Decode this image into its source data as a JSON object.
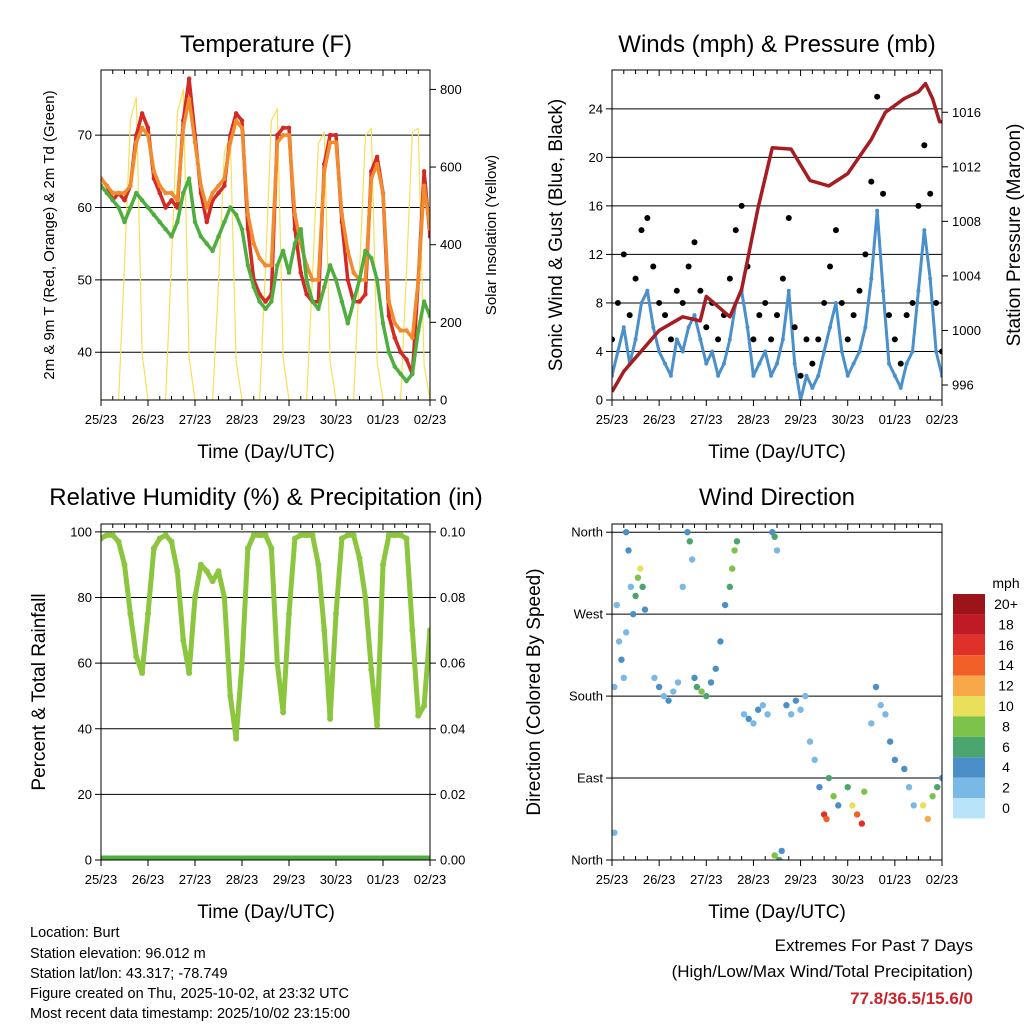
{
  "colors": {
    "red": "#d42a25",
    "orange": "#f28a2e",
    "green": "#4fae3f",
    "yellow": "#f5e05a",
    "blue": "#4a90cc",
    "black": "#000000",
    "maroon": "#a51d22",
    "rh": "#8cc63f",
    "precip": "#4fae3f",
    "extremes": "#c8242a"
  },
  "x_tick_labels": [
    "25/23",
    "26/23",
    "27/23",
    "28/23",
    "29/23",
    "30/23",
    "01/23",
    "02/23"
  ],
  "chart_data": [
    {
      "type": "line",
      "title": "Temperature (F)",
      "xlabel": "Time (Day/UTC)",
      "ylabel": "2m & 9m T (Red, Orange) & 2m Td (Green)",
      "ylabel_right": "Solar Insolation (Yellow)",
      "xlim": [
        0,
        7
      ],
      "ylim": [
        33.4,
        79
      ],
      "ylim_right": [
        0,
        850
      ],
      "yticks": [
        40,
        50,
        60,
        70
      ],
      "yticks_right": [
        0,
        200,
        400,
        600,
        800
      ],
      "grid": true,
      "x_step_days": 0.125,
      "series": [
        {
          "name": "2m T",
          "color_key": "red",
          "axis": "left",
          "values": [
            64,
            63,
            61,
            62,
            61,
            63,
            70,
            73,
            71,
            64,
            62,
            60,
            61,
            60,
            72,
            77.8,
            70,
            62,
            58,
            61,
            62,
            63,
            70,
            73,
            72,
            57,
            50,
            48,
            47,
            48,
            70,
            71,
            71,
            57,
            51,
            48,
            47,
            47,
            66,
            70,
            70,
            58,
            50,
            47,
            47,
            48,
            65,
            67,
            62,
            45,
            42,
            40,
            39,
            37,
            50,
            65,
            56
          ]
        },
        {
          "name": "9m T",
          "color_key": "orange",
          "axis": "left",
          "values": [
            64,
            63,
            62,
            62,
            62,
            63,
            69,
            71,
            70,
            65,
            63,
            62,
            62,
            61,
            71,
            75,
            69,
            63,
            60,
            62,
            63,
            64,
            69,
            72,
            71,
            59,
            55,
            53,
            52,
            52,
            69,
            70,
            70,
            59,
            55,
            52,
            50,
            50,
            65,
            69,
            69,
            59,
            54,
            51,
            50,
            50,
            64,
            66,
            62,
            47,
            44,
            43,
            43,
            42,
            50,
            63,
            57
          ]
        },
        {
          "name": "2m Td",
          "color_key": "green",
          "axis": "left",
          "values": [
            63,
            62,
            61,
            60,
            58,
            60,
            62,
            61,
            60,
            59,
            58,
            57,
            56,
            58,
            62,
            64,
            58,
            56,
            55,
            54,
            56,
            58,
            60,
            59,
            57,
            52,
            49,
            47,
            46,
            47,
            52,
            54,
            51,
            55,
            57,
            50,
            47,
            46,
            49,
            52,
            50,
            47,
            44,
            47,
            50,
            54,
            53,
            50,
            44,
            40,
            38,
            37,
            36,
            37,
            43,
            47,
            45
          ]
        },
        {
          "name": "Solar Insolation",
          "color_key": "yellow",
          "axis": "right",
          "values": [
            0,
            0,
            0,
            0,
            350,
            720,
            780,
            120,
            0,
            0,
            0,
            0,
            360,
            740,
            800,
            110,
            0,
            0,
            0,
            0,
            300,
            640,
            680,
            100,
            0,
            0,
            0,
            0,
            340,
            720,
            750,
            110,
            0,
            0,
            0,
            0,
            320,
            660,
            690,
            100,
            0,
            0,
            0,
            0,
            330,
            680,
            700,
            100,
            0,
            0,
            0,
            0,
            330,
            690,
            700,
            90,
            0
          ]
        }
      ]
    },
    {
      "type": "line",
      "title": "Winds (mph) & Pressure (mb)",
      "xlabel": "Time (Day/UTC)",
      "ylabel": "Sonic Wind & Gust (Blue, Black)",
      "ylabel_right": "Station Pressure (Maroon)",
      "xlim": [
        0,
        7
      ],
      "ylim": [
        0,
        27.2
      ],
      "ylim_right": [
        994.9,
        1019.1
      ],
      "yticks": [
        0,
        4,
        8,
        12,
        16,
        20,
        24
      ],
      "yticks_right": [
        996,
        1000,
        1004,
        1008,
        1012,
        1016
      ],
      "grid": true,
      "x_step_days": 0.125,
      "series": [
        {
          "name": "Sonic Wind",
          "color_key": "blue",
          "axis": "left",
          "values": [
            2,
            4,
            6,
            3,
            5,
            8,
            9,
            6,
            4,
            3,
            2,
            5,
            4,
            6,
            7,
            5,
            3,
            4,
            2,
            3,
            5,
            8,
            9,
            6,
            2,
            3,
            4,
            2,
            3,
            5,
            9,
            3,
            0,
            2,
            1,
            2,
            4,
            6,
            8,
            4,
            2,
            3,
            4,
            6,
            10,
            15.6,
            9,
            3,
            2,
            1,
            3,
            4,
            9,
            14,
            10,
            4,
            2
          ]
        },
        {
          "name": "Gust",
          "color_key": "black",
          "axis": "left",
          "values": [
            5,
            8,
            12,
            7,
            10,
            14,
            15,
            11,
            8,
            7,
            5,
            9,
            8,
            11,
            13,
            9,
            6,
            8,
            5,
            7,
            10,
            14,
            16,
            11,
            5,
            7,
            8,
            5,
            7,
            10,
            15,
            6,
            2,
            5,
            3,
            5,
            8,
            11,
            14,
            8,
            5,
            7,
            9,
            12,
            18,
            25,
            17,
            7,
            5,
            3,
            7,
            8,
            16,
            21,
            17,
            8,
            4
          ]
        },
        {
          "name": "Station Pressure",
          "color_key": "maroon",
          "axis": "right",
          "x": [
            0,
            0.25,
            0.5,
            1.0,
            1.5,
            1.87,
            2.0,
            2.5,
            2.75,
            3.1,
            3.4,
            3.8,
            4.2,
            4.6,
            5.0,
            5.5,
            5.8,
            6.2,
            6.5,
            6.65,
            6.8,
            6.95,
            7.0
          ],
          "values": [
            995.5,
            997,
            998,
            1000,
            1001,
            1000.7,
            1002.5,
            1001,
            1003,
            1009,
            1013.4,
            1013.3,
            1011,
            1010.6,
            1011.5,
            1014,
            1016,
            1017,
            1017.5,
            1018.1,
            1017,
            1015.3,
            1015.3
          ]
        }
      ]
    },
    {
      "type": "line",
      "title": "Relative Humidity (%) & Precipitation (in)",
      "xlabel": "Time (Day/UTC)",
      "ylabel": "Percent & Total Rainfall",
      "xlim": [
        0,
        7
      ],
      "ylim": [
        0,
        102.4
      ],
      "ylim_right": [
        0,
        0.1024
      ],
      "yticks": [
        0,
        20,
        40,
        60,
        80,
        100
      ],
      "yticks_right": [
        "0.00",
        "0.02",
        "0.04",
        "0.06",
        "0.08",
        "0.10"
      ],
      "grid": true,
      "x_step_days": 0.125,
      "series": [
        {
          "name": "Relative Humidity",
          "color_key": "rh",
          "axis": "left",
          "values": [
            98,
            99,
            99,
            97,
            90,
            75,
            62,
            57,
            75,
            95,
            98,
            99,
            97,
            88,
            67,
            57,
            80,
            90,
            88,
            85,
            88,
            80,
            50,
            37,
            60,
            95,
            99,
            99,
            99,
            95,
            60,
            45,
            75,
            98,
            99,
            99,
            99,
            90,
            70,
            43,
            75,
            98,
            99,
            99,
            92,
            80,
            58,
            41,
            90,
            99,
            99,
            99,
            98,
            70,
            44,
            47,
            70
          ]
        },
        {
          "name": "Total Precipitation",
          "color_key": "precip",
          "axis": "right",
          "values": [
            0,
            0,
            0,
            0,
            0,
            0,
            0,
            0,
            0,
            0,
            0,
            0,
            0,
            0,
            0,
            0,
            0,
            0,
            0,
            0,
            0,
            0,
            0,
            0,
            0,
            0,
            0,
            0,
            0,
            0,
            0,
            0,
            0,
            0,
            0,
            0,
            0,
            0,
            0,
            0,
            0,
            0,
            0,
            0,
            0,
            0,
            0,
            0,
            0,
            0,
            0,
            0,
            0,
            0,
            0,
            0,
            0
          ]
        }
      ]
    },
    {
      "type": "scatter",
      "title": "Wind Direction",
      "xlabel": "Time (Day/UTC)",
      "ylabel": "Direction (Colored By Speed)",
      "xlim": [
        0,
        7
      ],
      "ylim": [
        0,
        369
      ],
      "yticks": [
        0,
        90,
        180,
        270,
        360
      ],
      "ytick_labels": [
        "North",
        "East",
        "South",
        "West",
        "North"
      ],
      "grid": true,
      "legend": {
        "title": "mph",
        "placement": "right",
        "labels": [
          "20+",
          "18",
          "16",
          "14",
          "12",
          "10",
          "8",
          "6",
          "4",
          "2",
          "0"
        ],
        "colors": [
          "#9a1418",
          "#c01a24",
          "#e0302a",
          "#f06028",
          "#f8a848",
          "#e8e05a",
          "#7dc24a",
          "#4aa56e",
          "#4a8fc8",
          "#7ab8e5",
          "#b8e3f8"
        ]
      },
      "points": [
        [
          0.1,
          280,
          2
        ],
        [
          0.15,
          240,
          3
        ],
        [
          0.2,
          220,
          4
        ],
        [
          0.25,
          200,
          3
        ],
        [
          0.05,
          190,
          2
        ],
        [
          0.3,
          250,
          3
        ],
        [
          0.35,
          340,
          4
        ],
        [
          0.4,
          300,
          3
        ],
        [
          0.45,
          270,
          5
        ],
        [
          0.5,
          290,
          7
        ],
        [
          0.55,
          310,
          8
        ],
        [
          0.6,
          320,
          10
        ],
        [
          0.65,
          300,
          6
        ],
        [
          0.7,
          275,
          4
        ],
        [
          0.9,
          200,
          3
        ],
        [
          1.0,
          190,
          4
        ],
        [
          1.1,
          180,
          3
        ],
        [
          1.2,
          175,
          4
        ],
        [
          1.3,
          185,
          3
        ],
        [
          1.4,
          195,
          2
        ],
        [
          1.5,
          300,
          3
        ],
        [
          1.6,
          360,
          5
        ],
        [
          1.65,
          350,
          6
        ],
        [
          1.7,
          330,
          3
        ],
        [
          1.75,
          200,
          5
        ],
        [
          1.8,
          190,
          7
        ],
        [
          1.9,
          185,
          8
        ],
        [
          2.0,
          180,
          6
        ],
        [
          2.1,
          195,
          4
        ],
        [
          2.2,
          210,
          5
        ],
        [
          2.3,
          240,
          4
        ],
        [
          2.4,
          280,
          5
        ],
        [
          2.5,
          300,
          7
        ],
        [
          2.55,
          320,
          9
        ],
        [
          2.6,
          340,
          8
        ],
        [
          2.65,
          350,
          6
        ],
        [
          2.8,
          160,
          3
        ],
        [
          2.9,
          155,
          4
        ],
        [
          3.0,
          150,
          3
        ],
        [
          3.1,
          165,
          4
        ],
        [
          3.2,
          170,
          2
        ],
        [
          3.3,
          160,
          3
        ],
        [
          3.4,
          360,
          5
        ],
        [
          3.45,
          355,
          7
        ],
        [
          3.5,
          340,
          3
        ],
        [
          3.55,
          0,
          6
        ],
        [
          3.6,
          10,
          5
        ],
        [
          3.7,
          170,
          4
        ],
        [
          3.8,
          160,
          3
        ],
        [
          3.9,
          175,
          4
        ],
        [
          4.0,
          165,
          3
        ],
        [
          4.1,
          180,
          2
        ],
        [
          4.2,
          130,
          3
        ],
        [
          4.3,
          110,
          2
        ],
        [
          4.4,
          80,
          4
        ],
        [
          4.5,
          50,
          16
        ],
        [
          4.55,
          45,
          14
        ],
        [
          4.6,
          90,
          6
        ],
        [
          4.7,
          70,
          8
        ],
        [
          4.8,
          60,
          5
        ],
        [
          5.0,
          80,
          6
        ],
        [
          5.1,
          60,
          10
        ],
        [
          5.2,
          50,
          14
        ],
        [
          5.3,
          40,
          16
        ],
        [
          5.35,
          75,
          8
        ],
        [
          5.5,
          150,
          3
        ],
        [
          5.6,
          190,
          4
        ],
        [
          5.7,
          170,
          3
        ],
        [
          5.8,
          160,
          3
        ],
        [
          5.9,
          130,
          4
        ],
        [
          6.0,
          110,
          5
        ],
        [
          6.2,
          100,
          4
        ],
        [
          6.3,
          80,
          3
        ],
        [
          6.4,
          60,
          2
        ],
        [
          6.6,
          60,
          10
        ],
        [
          6.7,
          45,
          12
        ],
        [
          6.8,
          70,
          8
        ],
        [
          6.9,
          80,
          6
        ],
        [
          7.0,
          90,
          5
        ],
        [
          0.05,
          30,
          2
        ],
        [
          3.45,
          5,
          8
        ],
        [
          0.3,
          360,
          4
        ]
      ]
    }
  ],
  "footer": {
    "location": "Location: Burt",
    "elevation": "Station elevation: 96.012 m",
    "latlon": "Station lat/lon: 43.317; -78.749",
    "created": "Figure created on Thu, 2025-10-02, at 23:32 UTC",
    "recent": "Most recent data timestamp: 2025/10/02 23:15:00"
  },
  "extremes": {
    "title": "Extremes For Past 7 Days",
    "subtitle": "(High/Low/Max Wind/Total Precipitation)",
    "values": "77.8/36.5/15.6/0"
  }
}
